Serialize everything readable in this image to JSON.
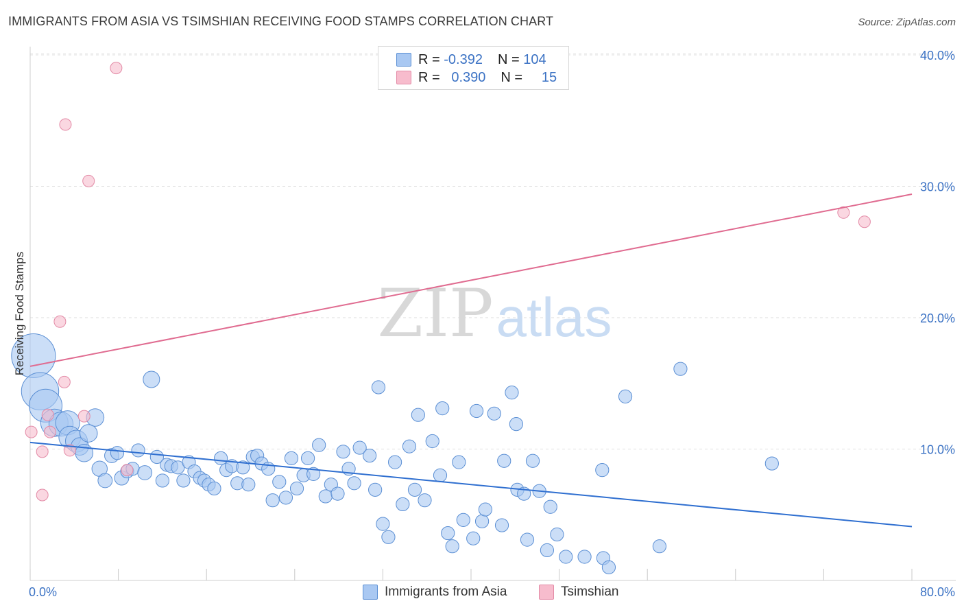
{
  "title": "IMMIGRANTS FROM ASIA VS TSIMSHIAN RECEIVING FOOD STAMPS CORRELATION CHART",
  "source": "Source: ZipAtlas.com",
  "watermark": {
    "part1": "ZIP",
    "part2": "atlas"
  },
  "legend": {
    "rows": [
      {
        "r_label": "R =",
        "r_value": "-0.392",
        "n_label": "N =",
        "n_value": "104",
        "fill": "#a9c8f2",
        "stroke": "#5b8fd4"
      },
      {
        "r_label": "R =",
        "r_value": "0.390",
        "n_label": "N =",
        "n_value": "15",
        "fill": "#f7bccd",
        "stroke": "#e38aa6"
      }
    ]
  },
  "bottom_legend": [
    {
      "label": "Immigrants from Asia",
      "fill": "#a9c8f2",
      "stroke": "#5b8fd4"
    },
    {
      "label": "Tsimshian",
      "fill": "#f7bccd",
      "stroke": "#e38aa6"
    }
  ],
  "chart_data": {
    "type": "scatter",
    "title": "IMMIGRANTS FROM ASIA VS TSIMSHIAN RECEIVING FOOD STAMPS CORRELATION CHART",
    "xlabel": "",
    "ylabel": "Receiving Food Stamps",
    "xlim": [
      0,
      80
    ],
    "ylim": [
      0,
      40
    ],
    "x_tick_labels": [
      "0.0%",
      "80.0%"
    ],
    "y_ticks": [
      10,
      20,
      30,
      40
    ],
    "y_tick_labels": [
      "10.0%",
      "20.0%",
      "30.0%",
      "40.0%"
    ],
    "grid": true,
    "colors": {
      "asia_fill": "#a9c8f2",
      "asia_stroke": "#5b8fd4",
      "asia_line": "#2f6fd0",
      "tsim_fill": "#f7bccd",
      "tsim_stroke": "#e38aa6",
      "tsim_line": "#e06b90",
      "axis_text": "#3b72c4"
    },
    "series": [
      {
        "name": "Immigrants from Asia",
        "r": -0.392,
        "n": 104,
        "trend": [
          [
            0,
            10.5
          ],
          [
            80,
            4.1
          ]
        ],
        "points": [
          [
            0.3,
            17.1,
            4
          ],
          [
            0.9,
            14.4,
            3.4
          ],
          [
            1.4,
            13.3,
            3
          ],
          [
            2.2,
            12.0,
            2.5
          ],
          [
            2.8,
            11.9,
            2.2
          ],
          [
            3.4,
            12.0,
            2.2
          ],
          [
            3.6,
            10.9,
            2
          ],
          [
            4.2,
            10.6,
            2
          ],
          [
            4.5,
            10.2,
            1.6
          ],
          [
            4.9,
            9.7,
            1.6
          ],
          [
            5.9,
            12.4,
            1.6
          ],
          [
            5.3,
            11.2,
            1.6
          ],
          [
            6.3,
            8.5,
            1.4
          ],
          [
            6.8,
            7.6,
            1.3
          ],
          [
            7.4,
            9.5,
            1.3
          ],
          [
            7.9,
            9.7,
            1.2
          ],
          [
            8.3,
            7.8,
            1.3
          ],
          [
            8.8,
            8.3,
            1.2
          ],
          [
            9.3,
            8.5,
            1.2
          ],
          [
            9.8,
            9.9,
            1.2
          ],
          [
            10.4,
            8.2,
            1.3
          ],
          [
            11.0,
            15.3,
            1.5
          ],
          [
            11.5,
            9.4,
            1.2
          ],
          [
            12.0,
            7.6,
            1.2
          ],
          [
            12.4,
            8.8,
            1.2
          ],
          [
            12.8,
            8.7,
            1.2
          ],
          [
            13.4,
            8.6,
            1.2
          ],
          [
            13.9,
            7.6,
            1.2
          ],
          [
            14.4,
            9.0,
            1.2
          ],
          [
            14.9,
            8.3,
            1.2
          ],
          [
            15.4,
            7.8,
            1.2
          ],
          [
            15.8,
            7.6,
            1.2
          ],
          [
            16.2,
            7.3,
            1.2
          ],
          [
            16.7,
            7.0,
            1.2
          ],
          [
            17.3,
            9.3,
            1.2
          ],
          [
            17.8,
            8.4,
            1.2
          ],
          [
            18.3,
            8.7,
            1.2
          ],
          [
            18.8,
            7.4,
            1.2
          ],
          [
            19.3,
            8.6,
            1.2
          ],
          [
            19.8,
            7.3,
            1.2
          ],
          [
            20.2,
            9.4,
            1.2
          ],
          [
            20.6,
            9.5,
            1.2
          ],
          [
            21.0,
            8.9,
            1.2
          ],
          [
            21.6,
            8.5,
            1.2
          ],
          [
            22.0,
            6.1,
            1.2
          ],
          [
            22.6,
            7.5,
            1.2
          ],
          [
            23.2,
            6.3,
            1.2
          ],
          [
            23.7,
            9.3,
            1.2
          ],
          [
            24.2,
            7.0,
            1.2
          ],
          [
            24.8,
            8.0,
            1.2
          ],
          [
            25.2,
            9.3,
            1.2
          ],
          [
            25.7,
            8.1,
            1.2
          ],
          [
            26.2,
            10.3,
            1.2
          ],
          [
            26.8,
            6.4,
            1.2
          ],
          [
            27.3,
            7.3,
            1.2
          ],
          [
            27.9,
            6.6,
            1.2
          ],
          [
            28.4,
            9.8,
            1.2
          ],
          [
            28.9,
            8.5,
            1.2
          ],
          [
            29.4,
            7.4,
            1.2
          ],
          [
            29.9,
            10.1,
            1.2
          ],
          [
            30.8,
            9.5,
            1.2
          ],
          [
            31.3,
            6.9,
            1.2
          ],
          [
            31.6,
            14.7,
            1.2
          ],
          [
            32.0,
            4.3,
            1.2
          ],
          [
            32.5,
            3.3,
            1.2
          ],
          [
            33.1,
            9.0,
            1.2
          ],
          [
            33.8,
            5.8,
            1.2
          ],
          [
            34.4,
            10.2,
            1.2
          ],
          [
            34.9,
            6.9,
            1.2
          ],
          [
            35.2,
            12.6,
            1.2
          ],
          [
            35.8,
            6.1,
            1.2
          ],
          [
            36.5,
            10.6,
            1.2
          ],
          [
            37.2,
            8.0,
            1.2
          ],
          [
            37.4,
            13.1,
            1.2
          ],
          [
            37.9,
            3.6,
            1.2
          ],
          [
            38.3,
            2.6,
            1.2
          ],
          [
            38.9,
            9.0,
            1.2
          ],
          [
            39.3,
            4.6,
            1.2
          ],
          [
            40.2,
            3.2,
            1.2
          ],
          [
            40.5,
            12.9,
            1.2
          ],
          [
            41.0,
            4.5,
            1.2
          ],
          [
            41.3,
            5.4,
            1.2
          ],
          [
            42.1,
            12.7,
            1.2
          ],
          [
            42.8,
            4.2,
            1.2
          ],
          [
            43.0,
            9.1,
            1.2
          ],
          [
            43.7,
            14.3,
            1.2
          ],
          [
            44.1,
            11.9,
            1.2
          ],
          [
            44.2,
            6.9,
            1.2
          ],
          [
            44.8,
            6.6,
            1.2
          ],
          [
            45.1,
            3.1,
            1.2
          ],
          [
            45.6,
            9.1,
            1.2
          ],
          [
            46.2,
            6.8,
            1.2
          ],
          [
            46.9,
            2.3,
            1.2
          ],
          [
            47.2,
            5.6,
            1.2
          ],
          [
            47.8,
            3.5,
            1.2
          ],
          [
            48.6,
            1.8,
            1.2
          ],
          [
            50.3,
            1.8,
            1.2
          ],
          [
            51.9,
            8.4,
            1.2
          ],
          [
            52.0,
            1.7,
            1.2
          ],
          [
            52.5,
            1.0,
            1.2
          ],
          [
            54.0,
            14.0,
            1.2
          ],
          [
            57.1,
            2.6,
            1.2
          ],
          [
            59.0,
            16.1,
            1.2
          ],
          [
            67.3,
            8.9,
            1.2
          ]
        ]
      },
      {
        "name": "Tsimshian",
        "r": 0.39,
        "n": 15,
        "trend": [
          [
            0,
            16.3
          ],
          [
            80,
            29.4
          ]
        ],
        "points": [
          [
            7.8,
            39.0
          ],
          [
            3.2,
            34.7
          ],
          [
            5.3,
            30.4
          ],
          [
            2.7,
            19.7
          ],
          [
            3.1,
            15.1
          ],
          [
            0.1,
            11.3
          ],
          [
            1.1,
            9.8
          ],
          [
            1.8,
            11.3
          ],
          [
            1.6,
            12.6
          ],
          [
            4.9,
            12.5
          ],
          [
            3.6,
            9.9
          ],
          [
            8.8,
            8.4
          ],
          [
            1.1,
            6.5
          ],
          [
            73.8,
            28.0
          ],
          [
            75.7,
            27.3
          ]
        ]
      }
    ]
  }
}
